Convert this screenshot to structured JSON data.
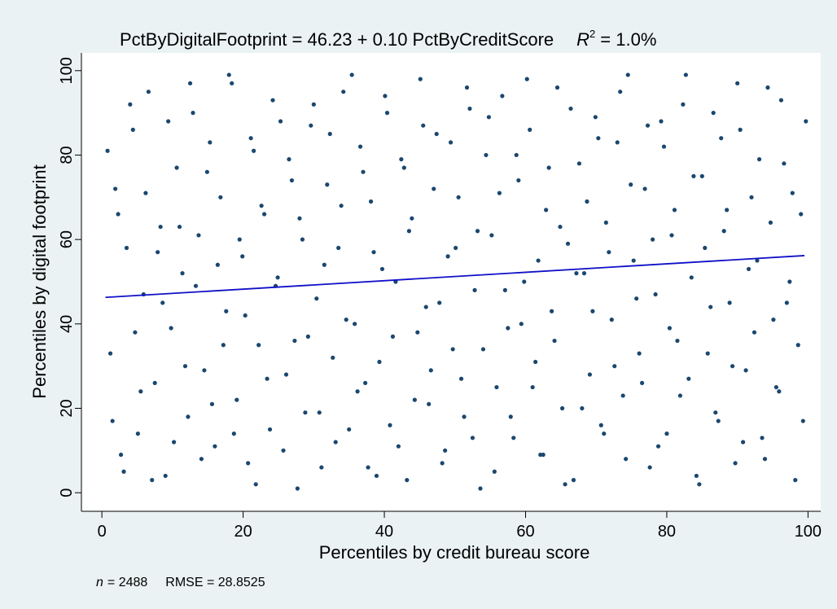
{
  "chart_data": {
    "type": "scatter",
    "title": "PctByDigitalFootprint = 46.23 + 0.10 PctByCreditScore",
    "r2_symbol": "R",
    "r2_exponent": "2",
    "r2_text": "= 1.0%",
    "x_label": "Percentiles by credit bureau score",
    "y_label": "Percentiles by digital footprint",
    "n_symbol": "n",
    "n_text": "= 2488",
    "rmse_text": "RMSE = 28.8525",
    "xlim": [
      -2.9,
      101.8
    ],
    "ylim": [
      -4.4,
      104.2
    ],
    "xticks": [
      0,
      20,
      40,
      60,
      80,
      100
    ],
    "yticks": [
      0,
      20,
      40,
      60,
      80,
      100
    ],
    "color": "#1a476f",
    "x": [
      0.8,
      1.5,
      2.3,
      3.1,
      4.0,
      4.7,
      5.5,
      6.2,
      7.1,
      7.9,
      8.6,
      9.4,
      10.2,
      11.0,
      11.8,
      12.5,
      13.3,
      14.1,
      14.9,
      15.6,
      16.4,
      17.2,
      18.0,
      18.7,
      19.5,
      20.3,
      21.1,
      21.8,
      22.6,
      23.4,
      24.2,
      24.9,
      25.7,
      26.5,
      27.3,
      28.0,
      28.8,
      29.6,
      30.4,
      31.1,
      31.9,
      32.7,
      33.5,
      34.2,
      35.0,
      35.8,
      36.6,
      37.3,
      38.1,
      38.9,
      39.7,
      40.4,
      41.2,
      42.0,
      42.8,
      43.5,
      44.3,
      45.1,
      45.9,
      46.6,
      47.4,
      48.2,
      49.0,
      49.7,
      50.5,
      51.3,
      52.1,
      52.8,
      53.6,
      54.4,
      55.2,
      55.9,
      56.7,
      57.5,
      58.3,
      59.0,
      59.8,
      60.6,
      61.4,
      62.1,
      62.9,
      63.7,
      64.5,
      65.2,
      66.0,
      66.8,
      67.6,
      68.3,
      69.1,
      69.9,
      70.7,
      71.4,
      72.2,
      73.0,
      73.8,
      74.5,
      75.3,
      76.1,
      76.9,
      77.6,
      78.4,
      79.2,
      80.0,
      80.7,
      81.5,
      82.3,
      83.1,
      83.8,
      84.6,
      85.4,
      86.2,
      86.9,
      87.7,
      88.5,
      89.3,
      90.0,
      90.8,
      91.6,
      92.4,
      93.1,
      93.9,
      94.7,
      95.5,
      96.2,
      97.0,
      97.8,
      98.6,
      99.3,
      1.2,
      1.9,
      2.7,
      3.5,
      4.4,
      5.1,
      5.9,
      6.6,
      7.5,
      8.3,
      9.0,
      9.8,
      10.6,
      11.4,
      12.2,
      12.9,
      13.7,
      14.5,
      15.3,
      16.0,
      16.8,
      17.6,
      18.4,
      19.1,
      19.9,
      20.7,
      21.5,
      22.2,
      23.0,
      23.8,
      24.6,
      25.3,
      26.1,
      26.9,
      27.7,
      28.4,
      29.2,
      30.0,
      30.8,
      31.5,
      32.3,
      33.1,
      33.9,
      34.6,
      35.4,
      36.2,
      37.0,
      37.7,
      38.5,
      39.3,
      40.1,
      40.8,
      41.6,
      42.4,
      43.2,
      43.9,
      44.7,
      45.5,
      46.3,
      47.0,
      47.8,
      48.6,
      49.4,
      50.1,
      50.9,
      51.7,
      52.5,
      53.2,
      54.0,
      54.8,
      55.6,
      56.3,
      57.1,
      57.9,
      58.7,
      59.4,
      60.2,
      61.0,
      61.8,
      62.5,
      63.3,
      64.1,
      64.9,
      65.6,
      66.4,
      67.2,
      68.0,
      68.7,
      69.5,
      70.3,
      71.1,
      71.8,
      72.6,
      73.4,
      74.2,
      74.9,
      75.7,
      76.5,
      77.3,
      78.0,
      78.8,
      79.6,
      80.4,
      81.1,
      81.9,
      82.7,
      83.5,
      84.2,
      85.0,
      85.8,
      86.6,
      87.3,
      88.1,
      88.9,
      89.7,
      90.4,
      91.2,
      92.0,
      92.8,
      93.5,
      94.3,
      95.1,
      95.9,
      96.6,
      97.4,
      98.2,
      99.0,
      99.7
    ],
    "values": [
      81,
      17,
      66,
      5,
      92,
      38,
      24,
      71,
      3,
      57,
      45,
      88,
      12,
      63,
      30,
      97,
      49,
      8,
      76,
      21,
      54,
      35,
      99,
      14,
      60,
      42,
      84,
      2,
      68,
      27,
      93,
      51,
      10,
      79,
      36,
      65,
      19,
      87,
      46,
      6,
      73,
      32,
      58,
      95,
      15,
      40,
      82,
      26,
      69,
      4,
      53,
      90,
      37,
      11,
      77,
      62,
      22,
      98,
      44,
      29,
      85,
      7,
      56,
      34,
      70,
      18,
      91,
      48,
      1,
      80,
      61,
      25,
      94,
      39,
      13,
      74,
      50,
      86,
      31,
      9,
      67,
      43,
      96,
      20,
      59,
      3,
      78,
      52,
      28,
      89,
      16,
      64,
      41,
      83,
      23,
      99,
      55,
      33,
      72,
      6,
      47,
      88,
      14,
      61,
      36,
      92,
      27,
      75,
      2,
      58,
      44,
      19,
      84,
      67,
      30,
      97,
      12,
      53,
      38,
      79,
      8,
      64,
      25,
      93,
      45,
      71,
      35,
      17,
      33,
      72,
      9,
      58,
      86,
      14,
      47,
      95,
      26,
      63,
      4,
      39,
      77,
      52,
      18,
      90,
      61,
      29,
      83,
      11,
      70,
      43,
      97,
      22,
      56,
      7,
      81,
      35,
      66,
      15,
      49,
      88,
      28,
      74,
      1,
      60,
      37,
      92,
      19,
      54,
      85,
      12,
      68,
      41,
      99,
      24,
      76,
      6,
      57,
      31,
      94,
      16,
      50,
      79,
      3,
      65,
      38,
      87,
      21,
      72,
      45,
      10,
      83,
      58,
      27,
      96,
      13,
      62,
      34,
      89,
      5,
      71,
      48,
      18,
      80,
      40,
      98,
      25,
      55,
      9,
      77,
      36,
      63,
      2,
      91,
      52,
      20,
      69,
      43,
      84,
      14,
      57,
      30,
      95,
      8,
      73,
      46,
      26,
      87,
      60,
      11,
      82,
      39,
      67,
      23,
      99,
      51,
      4,
      75,
      33,
      90,
      17,
      62,
      45,
      7,
      86,
      29,
      70,
      55,
      13,
      96,
      41,
      24,
      78,
      50,
      3,
      66,
      88
    ],
    "fit": {
      "x": [
        0.5,
        99.5
      ],
      "values": [
        46.28,
        56.18
      ],
      "color": "#1010c8"
    }
  }
}
